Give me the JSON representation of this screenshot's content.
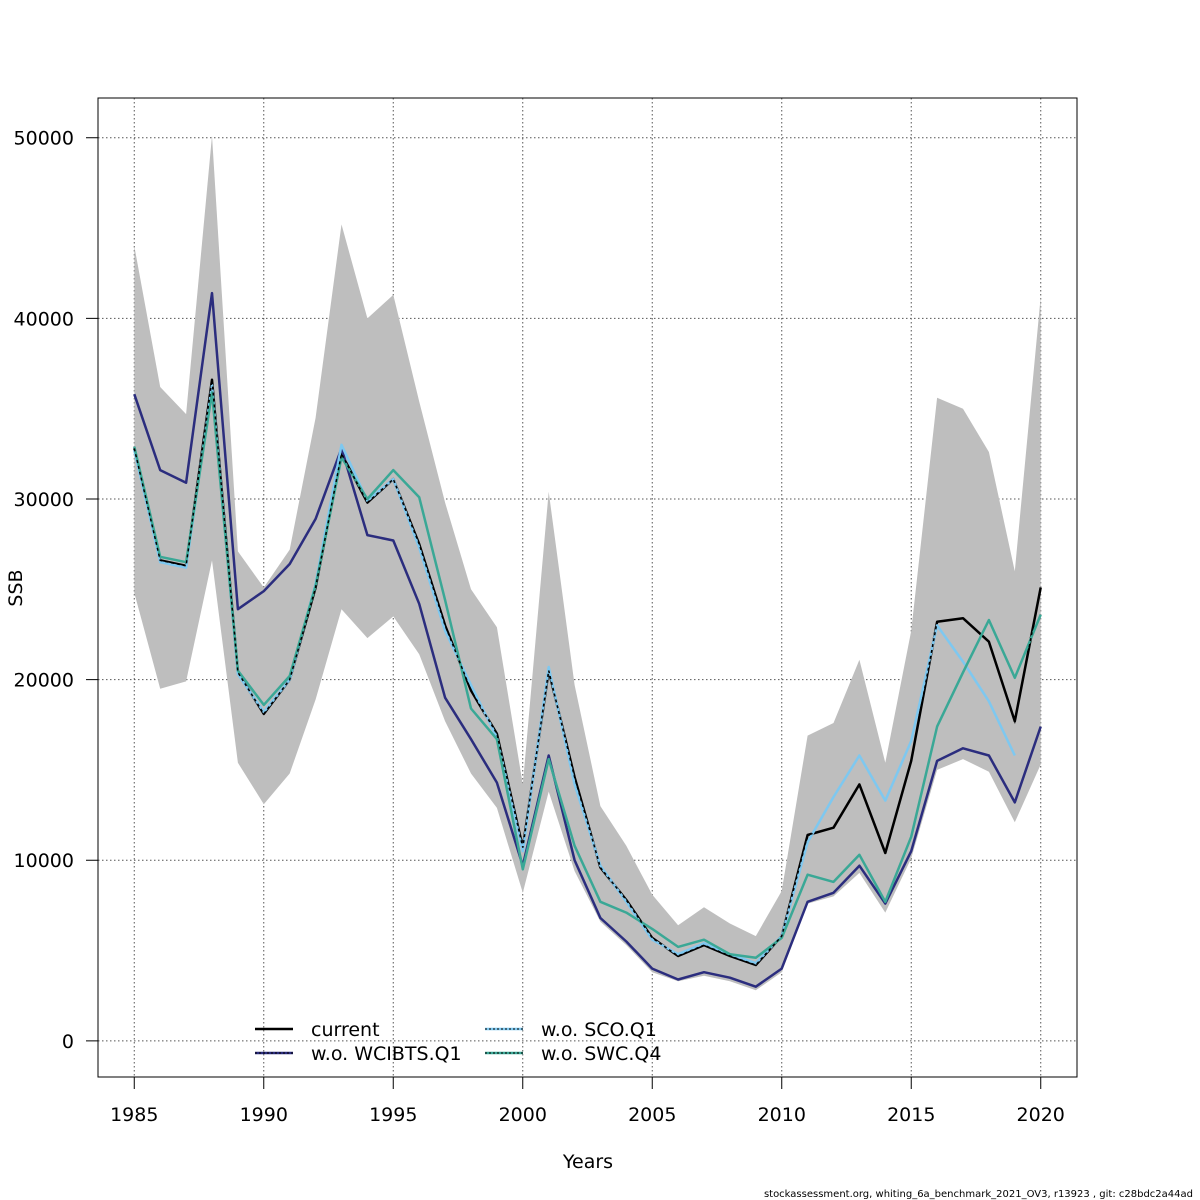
{
  "chart_data": {
    "type": "line",
    "title": "",
    "xlabel": "Years",
    "ylabel": "SSB",
    "xlim": [
      1983.6,
      2021.4
    ],
    "ylim": [
      -2000,
      52200
    ],
    "x_ticks": [
      1985,
      1990,
      1995,
      2000,
      2005,
      2010,
      2015,
      2020
    ],
    "y_ticks": [
      0,
      10000,
      20000,
      30000,
      40000,
      50000
    ],
    "grid": true,
    "legend_position": "bottom-center",
    "x": [
      1985,
      1986,
      1987,
      1988,
      1989,
      1990,
      1991,
      1992,
      1993,
      1994,
      1995,
      1996,
      1997,
      1998,
      1999,
      2000,
      2001,
      2002,
      2003,
      2004,
      2005,
      2006,
      2007,
      2008,
      2009,
      2010,
      2011,
      2012,
      2013,
      2014,
      2015,
      2016,
      2017,
      2018,
      2019,
      2020
    ],
    "band": {
      "color": "#bebebe",
      "upper": [
        44000,
        36200,
        34700,
        50100,
        27100,
        25100,
        27200,
        34500,
        45200,
        40000,
        41300,
        35400,
        29800,
        25000,
        22900,
        14200,
        30400,
        19700,
        13000,
        10800,
        8100,
        6400,
        7400,
        6500,
        5800,
        8300,
        16900,
        17600,
        21100,
        15400,
        22700,
        35600,
        35000,
        32600,
        26000,
        41200
      ],
      "lower": [
        24800,
        19500,
        19900,
        26600,
        15400,
        13100,
        14800,
        18900,
        23900,
        22300,
        23500,
        21400,
        17700,
        14800,
        12900,
        8200,
        13800,
        9400,
        6600,
        5300,
        3800,
        3300,
        3600,
        3300,
        2800,
        3800,
        7600,
        8000,
        9300,
        7100,
        10100,
        15000,
        15600,
        14900,
        12100,
        15300
      ]
    },
    "series": [
      {
        "name": "current",
        "color": "#000000",
        "dash": "",
        "values": [
          32800,
          26600,
          26300,
          36600,
          20400,
          18100,
          20000,
          25100,
          32500,
          29800,
          31100,
          27500,
          23000,
          19400,
          17000,
          10700,
          20500,
          14600,
          9600,
          7800,
          5700,
          4700,
          5300,
          4700,
          4200,
          5800,
          11400,
          11800,
          14200,
          10400,
          15500,
          23200,
          23400,
          22100,
          17700,
          25100
        ],
        "stroke_width": 2.5
      },
      {
        "name": "w.o. WCIBTS.Q1",
        "color": "#2b2d7e",
        "dash": "",
        "values": [
          35800,
          31600,
          30900,
          41400,
          23900,
          24900,
          26400,
          28900,
          32800,
          28000,
          27700,
          24200,
          19000,
          16700,
          14300,
          9700,
          15800,
          10000,
          6800,
          5500,
          4000,
          3400,
          3800,
          3500,
          3000,
          4000,
          7700,
          8200,
          9700,
          7600,
          10500,
          15500,
          16200,
          15800,
          13200,
          17400
        ],
        "stroke_width": 2.5
      },
      {
        "name": "w.o. SCO.Q1",
        "color": "#7ec8f0",
        "dash": "",
        "values": [
          32700,
          26500,
          26200,
          36300,
          20300,
          18200,
          20000,
          25300,
          33000,
          29900,
          31100,
          27300,
          22700,
          19700,
          16800,
          10500,
          20700,
          14200,
          9700,
          7700,
          5600,
          4800,
          5400,
          4800,
          4300,
          5800,
          11000,
          13500,
          15800,
          13300,
          16600,
          23000,
          21000,
          18800,
          15800,
          null
        ],
        "stroke_width": 2.5
      },
      {
        "name": "w.o. SWC.Q4",
        "color": "#3aa896",
        "dash": "",
        "values": [
          32900,
          26800,
          26500,
          35900,
          20500,
          18600,
          20200,
          25200,
          32300,
          30000,
          31600,
          30100,
          24400,
          18400,
          16700,
          9500,
          15600,
          10800,
          7700,
          7100,
          6200,
          5200,
          5600,
          4800,
          4600,
          5700,
          9200,
          8800,
          10300,
          7700,
          11300,
          17400,
          20400,
          23300,
          20100,
          23600
        ],
        "stroke_width": 2.5
      }
    ],
    "legend": {
      "col1": [
        "current",
        "w.o. WCIBTS.Q1"
      ],
      "col2": [
        "w.o. SCO.Q1",
        "w.o. SWC.Q4"
      ]
    }
  },
  "footer": {
    "text": "stockassessment.org, whiting_6a_benchmark_2021_OV3, r13923 , git: c28bdc2a44ad"
  }
}
